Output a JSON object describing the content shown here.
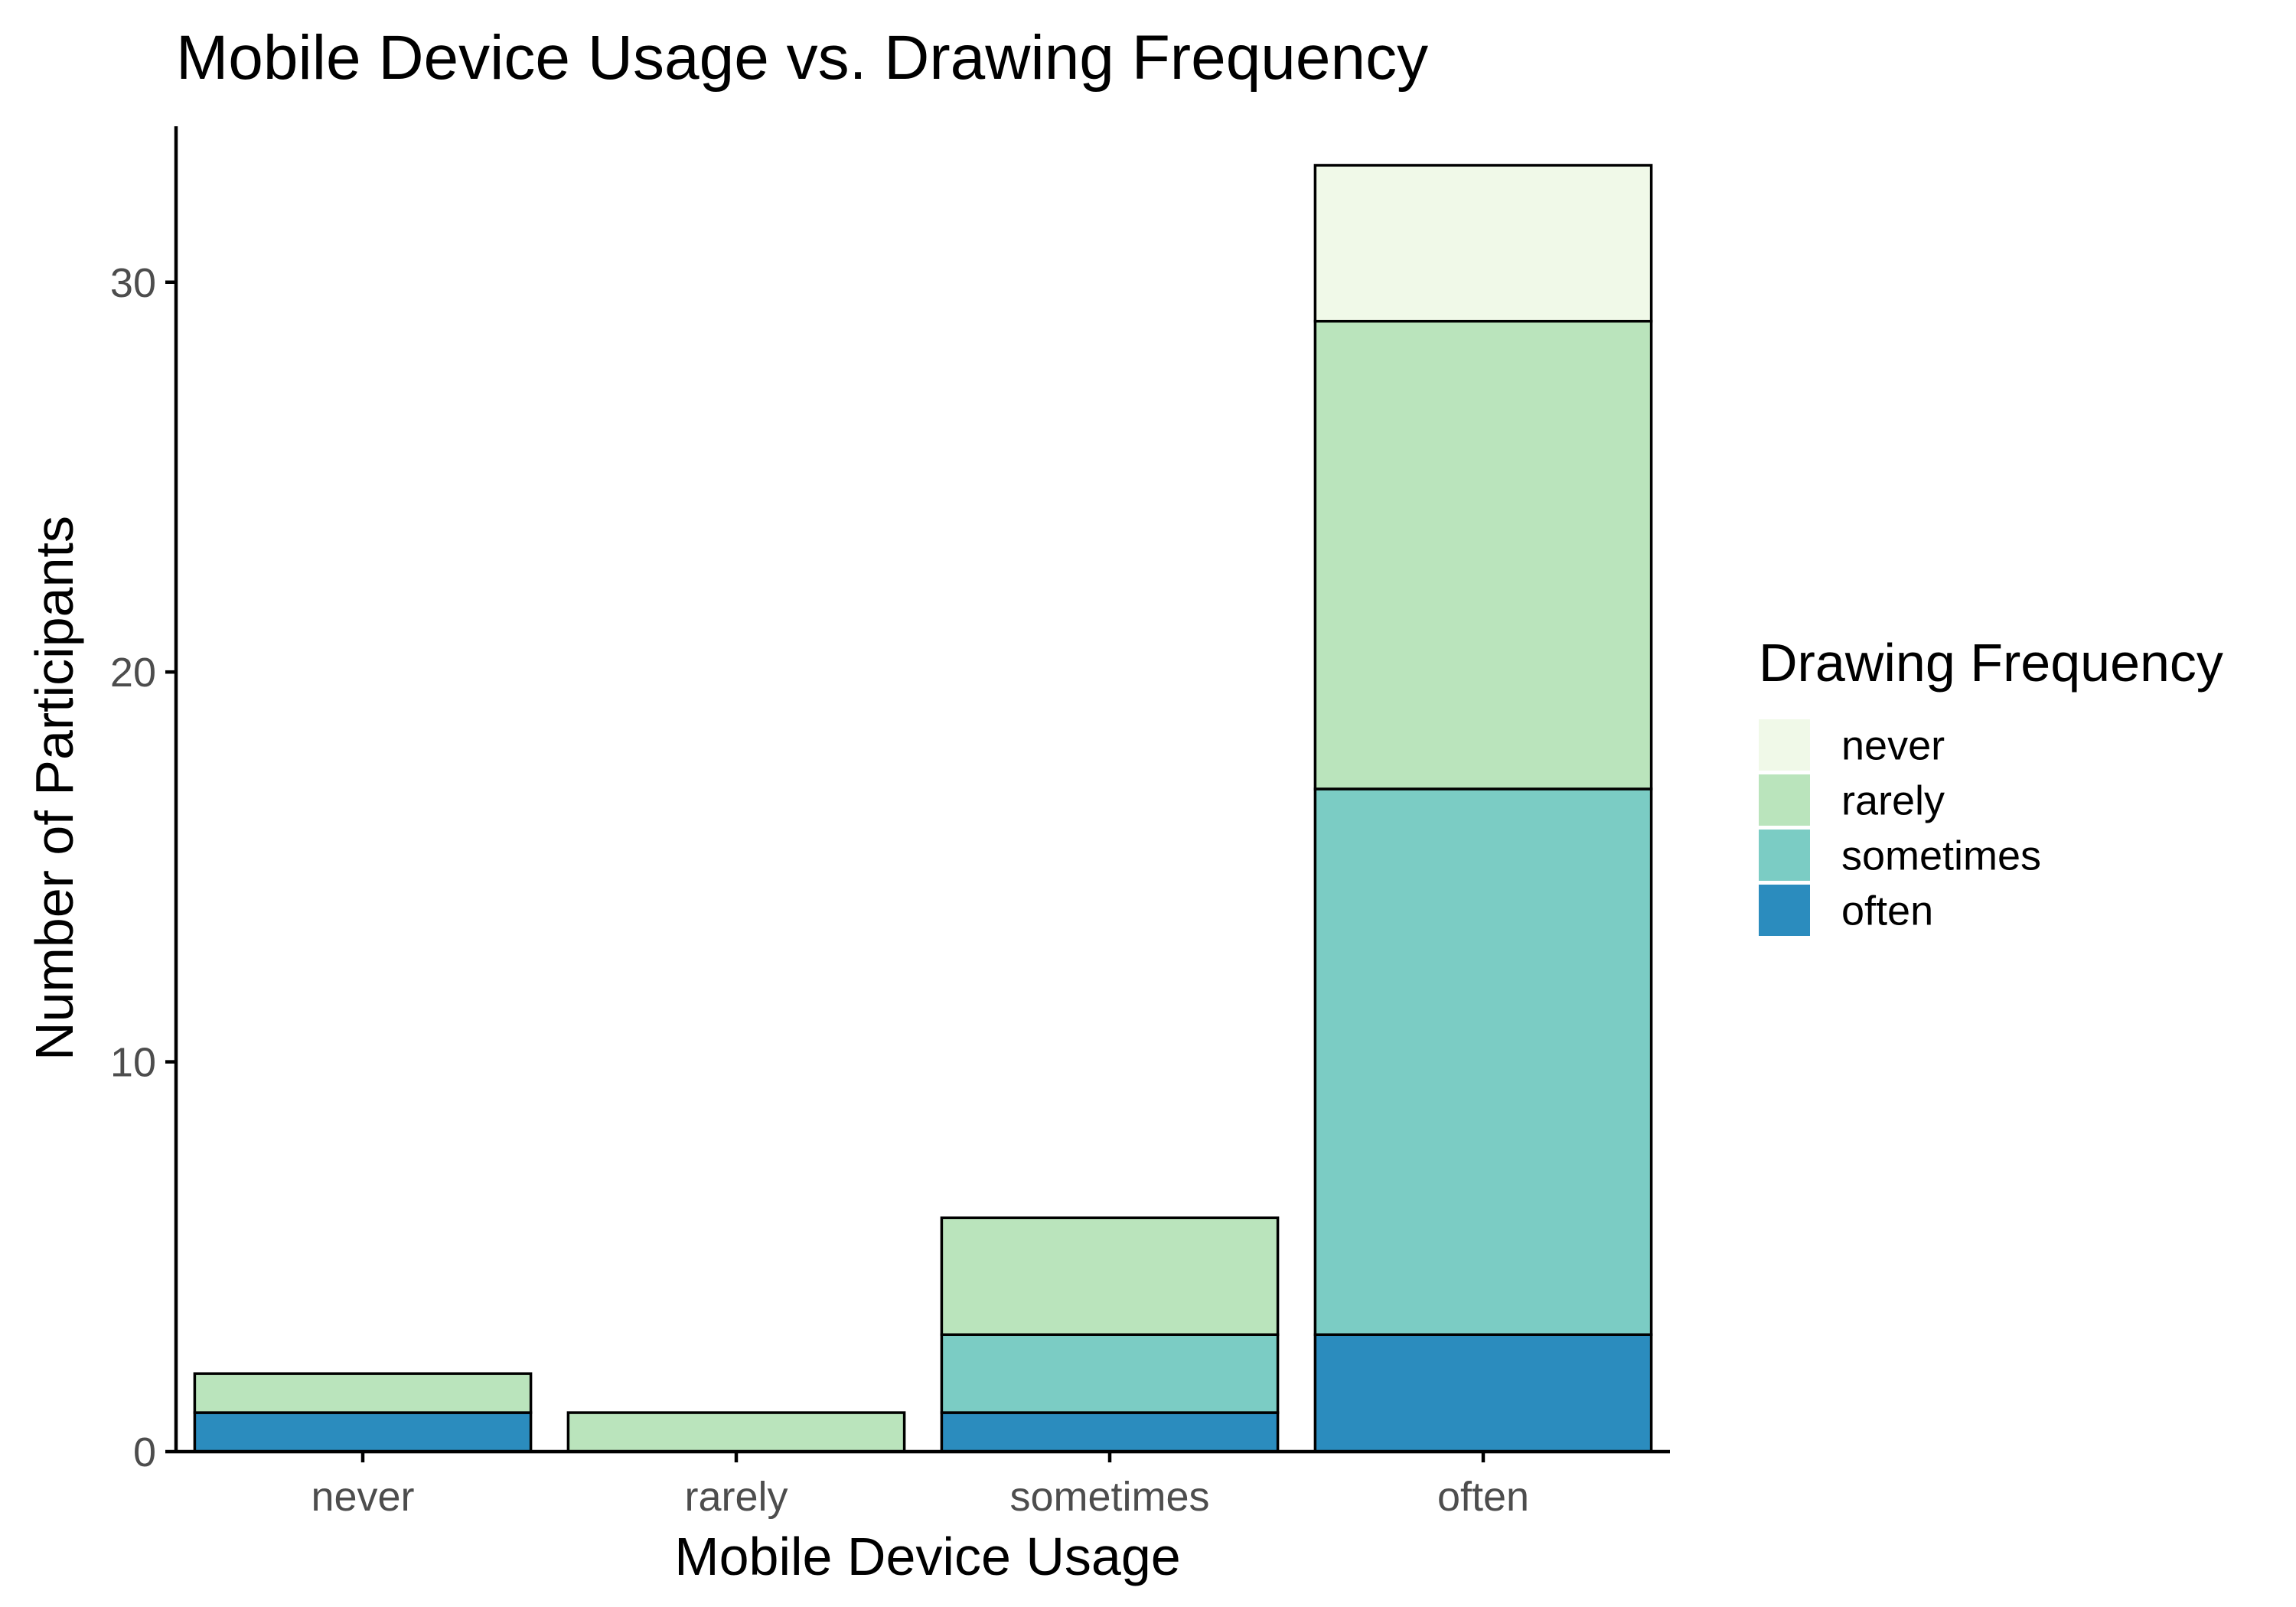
{
  "chart_data": {
    "type": "bar",
    "stacked": true,
    "title": "Mobile Device Usage vs. Drawing Frequency",
    "xlabel": "Mobile Device Usage",
    "ylabel": "Number of Participants",
    "categories": [
      "never",
      "rarely",
      "sometimes",
      "often"
    ],
    "ylim": [
      0,
      34
    ],
    "yticks": [
      0,
      10,
      20,
      30
    ],
    "grid": false,
    "legend": {
      "title": "Drawing Frequency",
      "position": "right"
    },
    "series": [
      {
        "name": "never",
        "color": "#f0f9e8",
        "values": [
          0,
          0,
          0,
          4
        ]
      },
      {
        "name": "rarely",
        "color": "#bae4bc",
        "values": [
          1,
          1,
          3,
          12
        ]
      },
      {
        "name": "sometimes",
        "color": "#7bccc4",
        "values": [
          0,
          0,
          2,
          14
        ]
      },
      {
        "name": "often",
        "color": "#2b8cbe",
        "values": [
          1,
          0,
          1,
          3
        ]
      }
    ]
  }
}
